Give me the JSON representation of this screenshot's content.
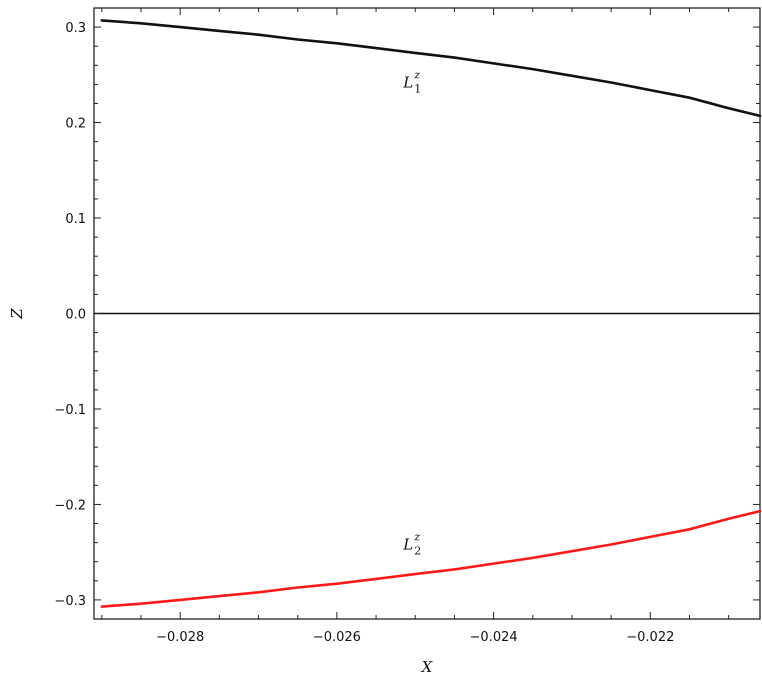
{
  "chart_data": {
    "type": "line",
    "xlabel": "X",
    "ylabel": "Z",
    "xlim": [
      -0.0291,
      -0.0206
    ],
    "ylim": [
      -0.32,
      0.32
    ],
    "x_ticks": [
      "-0.028",
      "-0.026",
      "-0.024",
      "-0.022"
    ],
    "x_tick_values": [
      -0.028,
      -0.026,
      -0.024,
      -0.022
    ],
    "y_ticks": [
      "-0.3",
      "-0.2",
      "-0.1",
      "0.0",
      "0.1",
      "0.2",
      "0.3"
    ],
    "y_tick_values": [
      -0.3,
      -0.2,
      -0.1,
      0.0,
      0.1,
      0.2,
      0.3
    ],
    "zero_line": true,
    "grid": false,
    "series": [
      {
        "name": "L1z",
        "label": {
          "base": "L",
          "sub": "1",
          "sup": "z"
        },
        "color": "#111111",
        "x": [
          -0.029,
          -0.0285,
          -0.028,
          -0.0275,
          -0.027,
          -0.0265,
          -0.026,
          -0.0255,
          -0.025,
          -0.0245,
          -0.024,
          -0.0235,
          -0.023,
          -0.0225,
          -0.022,
          -0.0215,
          -0.021,
          -0.0206
        ],
        "y": [
          0.307,
          0.304,
          0.3,
          0.296,
          0.292,
          0.287,
          0.283,
          0.278,
          0.273,
          0.268,
          0.262,
          0.256,
          0.249,
          0.242,
          0.234,
          0.226,
          0.215,
          0.207
        ]
      },
      {
        "name": "L2z",
        "label": {
          "base": "L",
          "sub": "2",
          "sup": "z"
        },
        "color": "#ff1a1a",
        "x": [
          -0.029,
          -0.0285,
          -0.028,
          -0.0275,
          -0.027,
          -0.0265,
          -0.026,
          -0.0255,
          -0.025,
          -0.0245,
          -0.024,
          -0.0235,
          -0.023,
          -0.0225,
          -0.022,
          -0.0215,
          -0.021,
          -0.0206
        ],
        "y": [
          -0.307,
          -0.304,
          -0.3,
          -0.296,
          -0.292,
          -0.287,
          -0.283,
          -0.278,
          -0.273,
          -0.268,
          -0.262,
          -0.256,
          -0.249,
          -0.242,
          -0.234,
          -0.226,
          -0.215,
          -0.207
        ]
      }
    ],
    "annotations": [
      {
        "series": 0,
        "x": -0.025,
        "y": 0.242
      },
      {
        "series": 1,
        "x": -0.025,
        "y": -0.242
      }
    ]
  }
}
